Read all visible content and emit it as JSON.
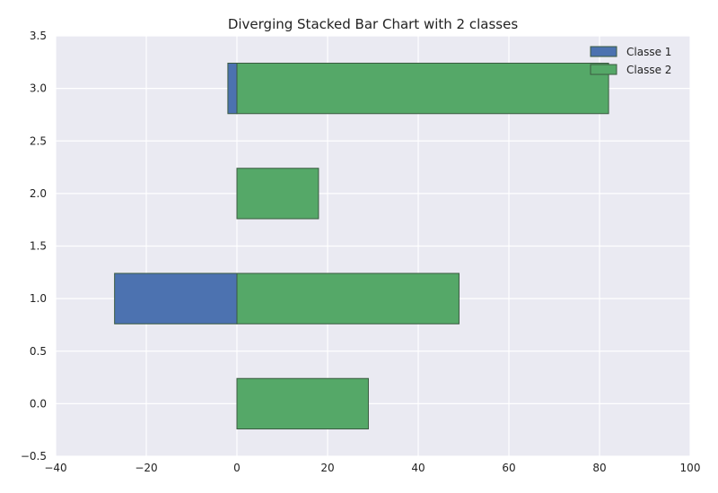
{
  "chart_data": {
    "type": "bar",
    "orientation": "horizontal",
    "stacked": "diverging",
    "title": "Diverging Stacked Bar Chart with 2 classes",
    "xlabel": "",
    "ylabel": "",
    "xlim": [
      -40,
      100
    ],
    "ylim": [
      -0.5,
      3.5
    ],
    "xticks": [
      -40,
      -20,
      0,
      20,
      40,
      60,
      80,
      100
    ],
    "xtick_labels": [
      "−40",
      "−20",
      "0",
      "20",
      "40",
      "60",
      "80",
      "100"
    ],
    "yticks": [
      -0.5,
      0.0,
      0.5,
      1.0,
      1.5,
      2.0,
      2.5,
      3.0,
      3.5
    ],
    "ytick_labels": [
      "−0.5",
      "0.0",
      "0.5",
      "1.0",
      "1.5",
      "2.0",
      "2.5",
      "3.0",
      "3.5"
    ],
    "grid": true,
    "legend_position": "top-right",
    "y": [
      0,
      1,
      2,
      3
    ],
    "series": [
      {
        "name": "Classe 1",
        "color": "#4c72b0",
        "values": [
          0,
          -27,
          0,
          -2
        ]
      },
      {
        "name": "Classe 2",
        "color": "#55a868",
        "values": [
          29,
          49,
          18,
          82
        ]
      }
    ]
  }
}
